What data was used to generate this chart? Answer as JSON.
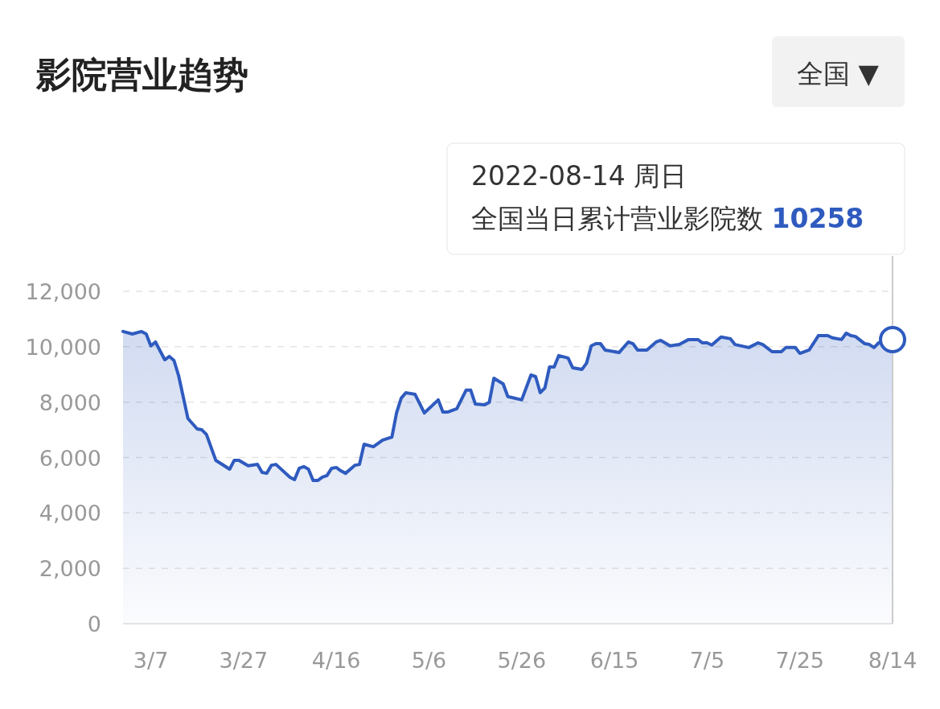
{
  "chart_data": {
    "type": "area",
    "title": "影院营业趋势",
    "annotations": [
      "全国 ▼",
      "2022-08-14 周日",
      "全国当日累计营业影院数 10258"
    ],
    "x": [
      "2022-03-01",
      "2022-03-03",
      "2022-03-05",
      "2022-03-06",
      "2022-03-07",
      "2022-03-08",
      "2022-03-10",
      "2022-03-11",
      "2022-03-12",
      "2022-03-13",
      "2022-03-15",
      "2022-03-17",
      "2022-03-18",
      "2022-03-19",
      "2022-03-21",
      "2022-03-24",
      "2022-03-25",
      "2022-03-26",
      "2022-03-28",
      "2022-03-30",
      "2022-03-31",
      "2022-04-01",
      "2022-04-02",
      "2022-04-03",
      "2022-04-06",
      "2022-04-07",
      "2022-04-08",
      "2022-04-09",
      "2022-04-10",
      "2022-04-11",
      "2022-04-12",
      "2022-04-13",
      "2022-04-14",
      "2022-04-15",
      "2022-04-16",
      "2022-04-17",
      "2022-04-18",
      "2022-04-20",
      "2022-04-21",
      "2022-04-22",
      "2022-04-24",
      "2022-04-26",
      "2022-04-28",
      "2022-04-29",
      "2022-04-30",
      "2022-05-01",
      "2022-05-03",
      "2022-05-05",
      "2022-05-08",
      "2022-05-09",
      "2022-05-10",
      "2022-05-12",
      "2022-05-14",
      "2022-05-15",
      "2022-05-16",
      "2022-05-18",
      "2022-05-19",
      "2022-05-20",
      "2022-05-22",
      "2022-05-23",
      "2022-05-26",
      "2022-05-28",
      "2022-05-29",
      "2022-05-30",
      "2022-05-31",
      "2022-06-01",
      "2022-06-02",
      "2022-06-03",
      "2022-06-05",
      "2022-06-06",
      "2022-06-08",
      "2022-06-09",
      "2022-06-10",
      "2022-06-11",
      "2022-06-12",
      "2022-06-13",
      "2022-06-16",
      "2022-06-18",
      "2022-06-19",
      "2022-06-20",
      "2022-06-22",
      "2022-06-24",
      "2022-06-25",
      "2022-06-27",
      "2022-06-29",
      "2022-07-01",
      "2022-07-03",
      "2022-07-04",
      "2022-07-05",
      "2022-07-06",
      "2022-07-08",
      "2022-07-10",
      "2022-07-11",
      "2022-07-14",
      "2022-07-16",
      "2022-07-17",
      "2022-07-19",
      "2022-07-21",
      "2022-07-22",
      "2022-07-24",
      "2022-07-25",
      "2022-07-27",
      "2022-07-29",
      "2022-07-31",
      "2022-08-01",
      "2022-08-03",
      "2022-08-04",
      "2022-08-05",
      "2022-08-06",
      "2022-08-08",
      "2022-08-09",
      "2022-08-10",
      "2022-08-11",
      "2022-08-14"
    ],
    "series": [
      {
        "color": "#2f5bbf",
        "values": [
          10550,
          10460,
          10550,
          10460,
          10030,
          10170,
          9530,
          9650,
          9500,
          8950,
          7410,
          7030,
          7000,
          6830,
          5900,
          5580,
          5900,
          5900,
          5700,
          5750,
          5460,
          5430,
          5720,
          5750,
          5290,
          5200,
          5610,
          5670,
          5580,
          5170,
          5170,
          5290,
          5350,
          5610,
          5640,
          5520,
          5430,
          5720,
          5750,
          6480,
          6390,
          6630,
          6740,
          7610,
          8140,
          8340,
          8280,
          7610,
          8080,
          7640,
          7640,
          7760,
          8430,
          8430,
          7930,
          7900,
          7990,
          8860,
          8660,
          8200,
          8080,
          8980,
          8920,
          8340,
          8510,
          9270,
          9270,
          9680,
          9590,
          9240,
          9180,
          9410,
          10030,
          10110,
          10110,
          9880,
          9790,
          10170,
          10110,
          9880,
          9880,
          10170,
          10230,
          10030,
          10080,
          10260,
          10260,
          10140,
          10140,
          10060,
          10350,
          10290,
          10080,
          9970,
          10140,
          10080,
          9820,
          9820,
          9970,
          9970,
          9760,
          9880,
          10400,
          10400,
          10320,
          10260,
          10490,
          10400,
          10370,
          10110,
          10080,
          9970,
          10140,
          10258
        ]
      }
    ],
    "xlim": [
      "2022-03-01",
      "2022-08-14"
    ],
    "xticks": [
      {
        "value": "2022-03-07",
        "label": "3/7"
      },
      {
        "value": "2022-03-27",
        "label": "3/27"
      },
      {
        "value": "2022-04-16",
        "label": "4/16"
      },
      {
        "value": "2022-05-06",
        "label": "5/6"
      },
      {
        "value": "2022-05-26",
        "label": "5/26"
      },
      {
        "value": "2022-06-15",
        "label": "6/15"
      },
      {
        "value": "2022-07-05",
        "label": "7/5"
      },
      {
        "value": "2022-07-25",
        "label": "7/25"
      },
      {
        "value": "2022-08-14",
        "label": "8/14"
      }
    ],
    "ylim": [
      0,
      12000
    ],
    "yticks": [
      {
        "value": 0,
        "label": "0"
      },
      {
        "value": 2000,
        "label": "2,000"
      },
      {
        "value": 4000,
        "label": "4,000"
      },
      {
        "value": 6000,
        "label": "6,000"
      },
      {
        "value": 8000,
        "label": "8,000"
      },
      {
        "value": 10000,
        "label": "10,000"
      },
      {
        "value": 12000,
        "label": "12,000"
      }
    ],
    "ref_lines": [
      {
        "axis": "x",
        "value": "2022-08-14",
        "color": "#cccccc"
      }
    ],
    "grid": "y",
    "marker": "none",
    "line_style": "solid"
  }
}
